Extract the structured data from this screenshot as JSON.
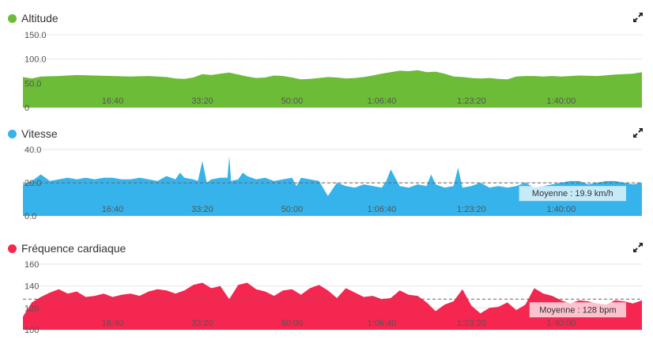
{
  "chart_data": [
    {
      "type": "area",
      "title": "Altitude",
      "color": "#6cbc37",
      "ylim": [
        0,
        150
      ],
      "yticks": [
        "150.0",
        "100.0",
        "50.0",
        "0"
      ],
      "ytick_values": [
        150,
        100,
        50,
        0
      ],
      "xlim": [
        0,
        6900
      ],
      "xticks": [
        "16:40",
        "33:20",
        "50:00",
        "1:06:40",
        "1:23:20",
        "1:40:00"
      ],
      "xtick_values": [
        1000,
        2000,
        3000,
        4000,
        5000,
        6000
      ],
      "series": [
        {
          "x": [
            0,
            100,
            200,
            400,
            600,
            800,
            1000,
            1200,
            1400,
            1600,
            1700,
            1800,
            1900,
            2000,
            2100,
            2200,
            2300,
            2400,
            2500,
            2600,
            2700,
            2800,
            2900,
            3000,
            3100,
            3200,
            3300,
            3400,
            3500,
            3600,
            3700,
            3800,
            3900,
            4000,
            4100,
            4200,
            4300,
            4400,
            4500,
            4600,
            4700,
            4800,
            4900,
            5000,
            5100,
            5200,
            5300,
            5400,
            5500,
            5600,
            5700,
            5800,
            5900,
            6000,
            6200,
            6400,
            6600,
            6800,
            6900
          ],
          "y": [
            63,
            60,
            64,
            65,
            67,
            66,
            65,
            64,
            65,
            63,
            60,
            59,
            62,
            69,
            67,
            70,
            72,
            68,
            64,
            61,
            62,
            66,
            65,
            62,
            58,
            59,
            61,
            63,
            62,
            60,
            61,
            63,
            66,
            70,
            73,
            76,
            75,
            77,
            73,
            74,
            70,
            64,
            63,
            61,
            60,
            61,
            59,
            58,
            64,
            65,
            65,
            64,
            65,
            64,
            66,
            65,
            68,
            70,
            73
          ]
        }
      ]
    },
    {
      "type": "area",
      "title": "Vitesse",
      "color": "#36b3ea",
      "ylim": [
        0,
        40
      ],
      "yticks": [
        "40.0",
        "20.0",
        "0.0"
      ],
      "ytick_values": [
        40,
        20,
        0
      ],
      "xlim": [
        0,
        6900
      ],
      "xticks": [
        "16:40",
        "33:20",
        "50:00",
        "1:06:40",
        "1:23:20",
        "1:40:00"
      ],
      "xtick_values": [
        1000,
        2000,
        3000,
        4000,
        5000,
        6000
      ],
      "average": {
        "value": 19.9,
        "label": "Moyenne : 19.9 km/h"
      },
      "series": [
        {
          "x": [
            0,
            100,
            200,
            300,
            400,
            500,
            600,
            700,
            800,
            900,
            1000,
            1100,
            1200,
            1300,
            1400,
            1500,
            1600,
            1700,
            1750,
            1800,
            1900,
            1950,
            2000,
            2050,
            2100,
            2200,
            2280,
            2300,
            2320,
            2400,
            2450,
            2500,
            2600,
            2700,
            2800,
            2900,
            3000,
            3050,
            3100,
            3200,
            3300,
            3400,
            3500,
            3600,
            3700,
            3800,
            3900,
            4000,
            4050,
            4100,
            4200,
            4300,
            4400,
            4500,
            4550,
            4600,
            4700,
            4800,
            4850,
            4900,
            5000,
            5100,
            5200,
            5300,
            5400,
            5500,
            5600,
            5700,
            5800,
            5900,
            6000,
            6100,
            6200,
            6300,
            6400,
            6500,
            6600,
            6700,
            6800,
            6900
          ],
          "y": [
            19,
            21,
            25,
            21,
            22,
            23,
            22,
            23,
            22,
            23,
            23,
            22,
            22,
            23,
            22,
            21,
            24,
            22,
            26,
            23,
            22,
            21,
            33,
            20,
            22,
            23,
            23,
            36,
            21,
            22,
            26,
            24,
            22,
            23,
            21,
            22,
            23,
            18,
            23,
            22,
            21,
            12,
            20,
            18,
            17,
            19,
            18,
            17,
            21,
            28,
            18,
            17,
            19,
            18,
            25,
            19,
            17,
            18,
            29,
            17,
            18,
            20,
            17,
            18,
            17,
            18,
            20,
            17,
            18,
            19,
            20,
            21,
            21,
            19,
            20,
            21,
            21,
            20,
            19,
            20
          ]
        }
      ]
    },
    {
      "type": "area",
      "title": "Fréquence cardiaque",
      "color": "#f5264f",
      "ylim": [
        100,
        160
      ],
      "yticks": [
        "160",
        "140",
        "120",
        "100"
      ],
      "ytick_values": [
        160,
        140,
        120,
        100
      ],
      "xlim": [
        0,
        6900
      ],
      "xticks": [
        "16:40",
        "33:20",
        "50:00",
        "1:06:40",
        "1:23:20",
        "1:40:00"
      ],
      "xtick_values": [
        1000,
        2000,
        3000,
        4000,
        5000,
        6000
      ],
      "average": {
        "value": 128,
        "label": "Moyenne : 128 bpm"
      },
      "series": [
        {
          "x": [
            0,
            100,
            200,
            300,
            400,
            500,
            600,
            700,
            800,
            900,
            1000,
            1100,
            1200,
            1300,
            1400,
            1500,
            1600,
            1700,
            1800,
            1900,
            2000,
            2100,
            2200,
            2300,
            2400,
            2500,
            2600,
            2700,
            2800,
            2900,
            3000,
            3100,
            3200,
            3300,
            3400,
            3500,
            3600,
            3700,
            3800,
            3900,
            4000,
            4100,
            4200,
            4300,
            4400,
            4500,
            4600,
            4700,
            4800,
            4900,
            5000,
            5100,
            5200,
            5300,
            5400,
            5500,
            5600,
            5700,
            5800,
            5900,
            6000,
            6100,
            6200,
            6300,
            6400,
            6500,
            6600,
            6700,
            6800,
            6900
          ],
          "y": [
            112,
            125,
            130,
            134,
            137,
            133,
            135,
            130,
            131,
            133,
            130,
            132,
            133,
            131,
            135,
            137,
            136,
            133,
            136,
            141,
            143,
            138,
            140,
            128,
            141,
            143,
            137,
            135,
            131,
            136,
            137,
            132,
            138,
            141,
            136,
            129,
            138,
            134,
            130,
            131,
            128,
            129,
            136,
            132,
            131,
            125,
            117,
            123,
            126,
            137,
            122,
            115,
            120,
            121,
            125,
            118,
            123,
            138,
            133,
            131,
            127,
            124,
            127,
            126,
            124,
            123,
            127,
            126,
            124,
            127
          ]
        }
      ]
    }
  ]
}
